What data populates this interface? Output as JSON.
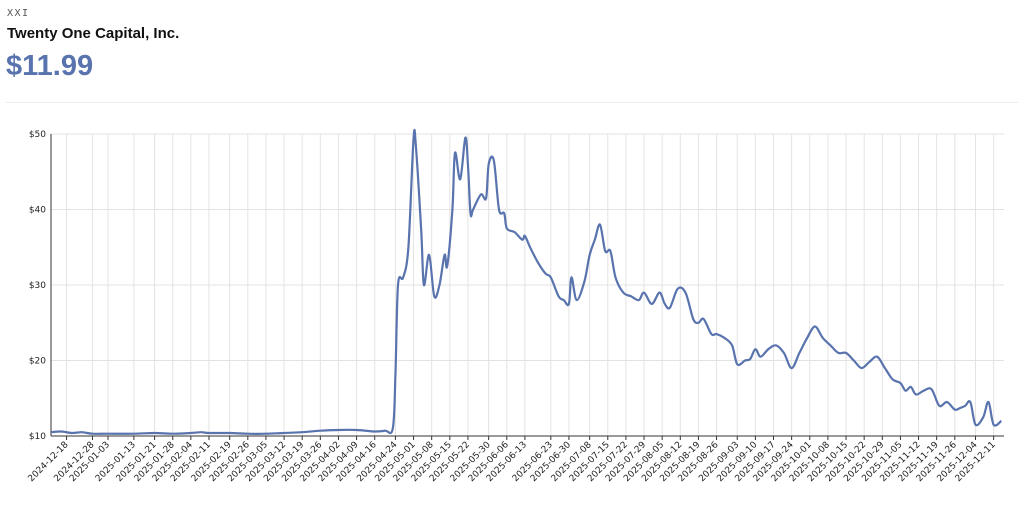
{
  "header": {
    "ticker": "XXI",
    "company": "Twenty One Capital, Inc.",
    "price": "$11.99"
  },
  "colors": {
    "line": "#5873ad",
    "grid": "#e3e3e3",
    "axis": "#333333"
  },
  "chart_data": {
    "type": "line",
    "title": "",
    "xlabel": "",
    "ylabel": "",
    "ylim": [
      10,
      50
    ],
    "yticks": [
      10,
      20,
      30,
      40,
      50
    ],
    "ytick_labels": [
      "$10",
      "$20",
      "$30",
      "$40",
      "$50"
    ],
    "xlim": [
      "2024-12-12",
      "2025-12-15"
    ],
    "grid": true,
    "xtick_labels": [
      "2024-12-18",
      "2024-12-28",
      "2025-01-03",
      "2025-01-13",
      "2025-01-21",
      "2025-01-28",
      "2025-02-04",
      "2025-02-11",
      "2025-02-19",
      "2025-02-26",
      "2025-03-05",
      "2025-03-12",
      "2025-03-19",
      "2025-03-26",
      "2025-04-02",
      "2025-04-09",
      "2025-04-16",
      "2025-04-24",
      "2025-05-01",
      "2025-05-08",
      "2025-05-15",
      "2025-05-22",
      "2025-05-30",
      "2025-06-06",
      "2025-06-13",
      "2025-06-23",
      "2025-06-30",
      "2025-07-08",
      "2025-07-15",
      "2025-07-22",
      "2025-07-29",
      "2025-08-05",
      "2025-08-12",
      "2025-08-19",
      "2025-08-26",
      "2025-09-03",
      "2025-09-10",
      "2025-09-17",
      "2025-09-24",
      "2025-10-01",
      "2025-10-08",
      "2025-10-15",
      "2025-10-22",
      "2025-10-29",
      "2025-11-05",
      "2025-11-12",
      "2025-11-19",
      "2025-11-26",
      "2025-12-04",
      "2025-12-11"
    ],
    "series": [
      {
        "x": [
          "2024-12-12",
          "2024-12-16",
          "2024-12-20",
          "2024-12-24",
          "2024-12-28",
          "2025-01-03",
          "2025-01-13",
          "2025-01-21",
          "2025-01-28",
          "2025-02-04",
          "2025-02-08",
          "2025-02-11",
          "2025-02-19",
          "2025-02-26",
          "2025-03-05",
          "2025-03-12",
          "2025-03-19",
          "2025-03-26",
          "2025-04-02",
          "2025-04-09",
          "2025-04-16",
          "2025-04-20",
          "2025-04-23",
          "2025-04-24",
          "2025-04-25",
          "2025-04-27",
          "2025-04-29",
          "2025-05-01",
          "2025-05-02",
          "2025-05-04",
          "2025-05-05",
          "2025-05-07",
          "2025-05-09",
          "2025-05-11",
          "2025-05-13",
          "2025-05-14",
          "2025-05-16",
          "2025-05-17",
          "2025-05-19",
          "2025-05-21",
          "2025-05-22",
          "2025-05-23",
          "2025-05-24",
          "2025-05-27",
          "2025-05-29",
          "2025-05-30",
          "2025-06-01",
          "2025-06-03",
          "2025-06-05",
          "2025-06-06",
          "2025-06-09",
          "2025-06-12",
          "2025-06-13",
          "2025-06-15",
          "2025-06-18",
          "2025-06-21",
          "2025-06-23",
          "2025-06-26",
          "2025-06-28",
          "2025-06-30",
          "2025-07-01",
          "2025-07-03",
          "2025-07-06",
          "2025-07-08",
          "2025-07-10",
          "2025-07-12",
          "2025-07-14",
          "2025-07-16",
          "2025-07-18",
          "2025-07-21",
          "2025-07-24",
          "2025-07-27",
          "2025-07-29",
          "2025-08-01",
          "2025-08-04",
          "2025-08-06",
          "2025-08-08",
          "2025-08-11",
          "2025-08-14",
          "2025-08-17",
          "2025-08-19",
          "2025-08-21",
          "2025-08-24",
          "2025-08-26",
          "2025-08-29",
          "2025-09-01",
          "2025-09-03",
          "2025-09-06",
          "2025-09-08",
          "2025-09-10",
          "2025-09-12",
          "2025-09-15",
          "2025-09-18",
          "2025-09-21",
          "2025-09-24",
          "2025-09-27",
          "2025-09-30",
          "2025-10-03",
          "2025-10-06",
          "2025-10-09",
          "2025-10-12",
          "2025-10-15",
          "2025-10-18",
          "2025-10-21",
          "2025-10-24",
          "2025-10-27",
          "2025-10-30",
          "2025-11-02",
          "2025-11-05",
          "2025-11-07",
          "2025-11-09",
          "2025-11-11",
          "2025-11-14",
          "2025-11-17",
          "2025-11-20",
          "2025-11-23",
          "2025-11-26",
          "2025-11-28",
          "2025-11-30",
          "2025-12-02",
          "2025-12-04",
          "2025-12-07",
          "2025-12-09",
          "2025-12-11",
          "2025-12-14"
        ],
        "y": [
          10.5,
          10.6,
          10.4,
          10.5,
          10.3,
          10.3,
          10.3,
          10.4,
          10.3,
          10.4,
          10.5,
          10.4,
          10.4,
          10.3,
          10.3,
          10.4,
          10.5,
          10.7,
          10.8,
          10.8,
          10.6,
          10.7,
          11.0,
          18.0,
          30.0,
          31.0,
          35.0,
          49.5,
          48.0,
          37.0,
          30.0,
          34.0,
          28.5,
          30.0,
          34.0,
          32.5,
          40.0,
          47.5,
          44.0,
          49.5,
          46.0,
          39.5,
          40.0,
          42.0,
          41.5,
          46.0,
          46.5,
          40.0,
          39.5,
          37.5,
          37.0,
          36.0,
          36.5,
          35.0,
          33.0,
          31.5,
          31.0,
          28.5,
          28.0,
          27.5,
          31.0,
          28.0,
          30.5,
          34.0,
          36.0,
          38.0,
          34.5,
          34.5,
          31.0,
          29.0,
          28.5,
          28.0,
          29.0,
          27.5,
          29.0,
          27.5,
          27.0,
          29.5,
          29.0,
          25.5,
          25.0,
          25.5,
          23.5,
          23.5,
          23.0,
          22.0,
          19.5,
          20.0,
          20.2,
          21.5,
          20.5,
          21.5,
          22.0,
          21.0,
          19.0,
          21.0,
          23.0,
          24.5,
          23.0,
          22.0,
          21.0,
          21.0,
          20.0,
          19.0,
          19.8,
          20.5,
          19.0,
          17.5,
          17.0,
          16.0,
          16.5,
          15.5,
          16.0,
          16.2,
          14.0,
          14.5,
          13.5,
          13.7,
          14.0,
          14.5,
          11.5,
          12.5,
          14.5,
          11.5,
          12.0
        ]
      }
    ]
  }
}
